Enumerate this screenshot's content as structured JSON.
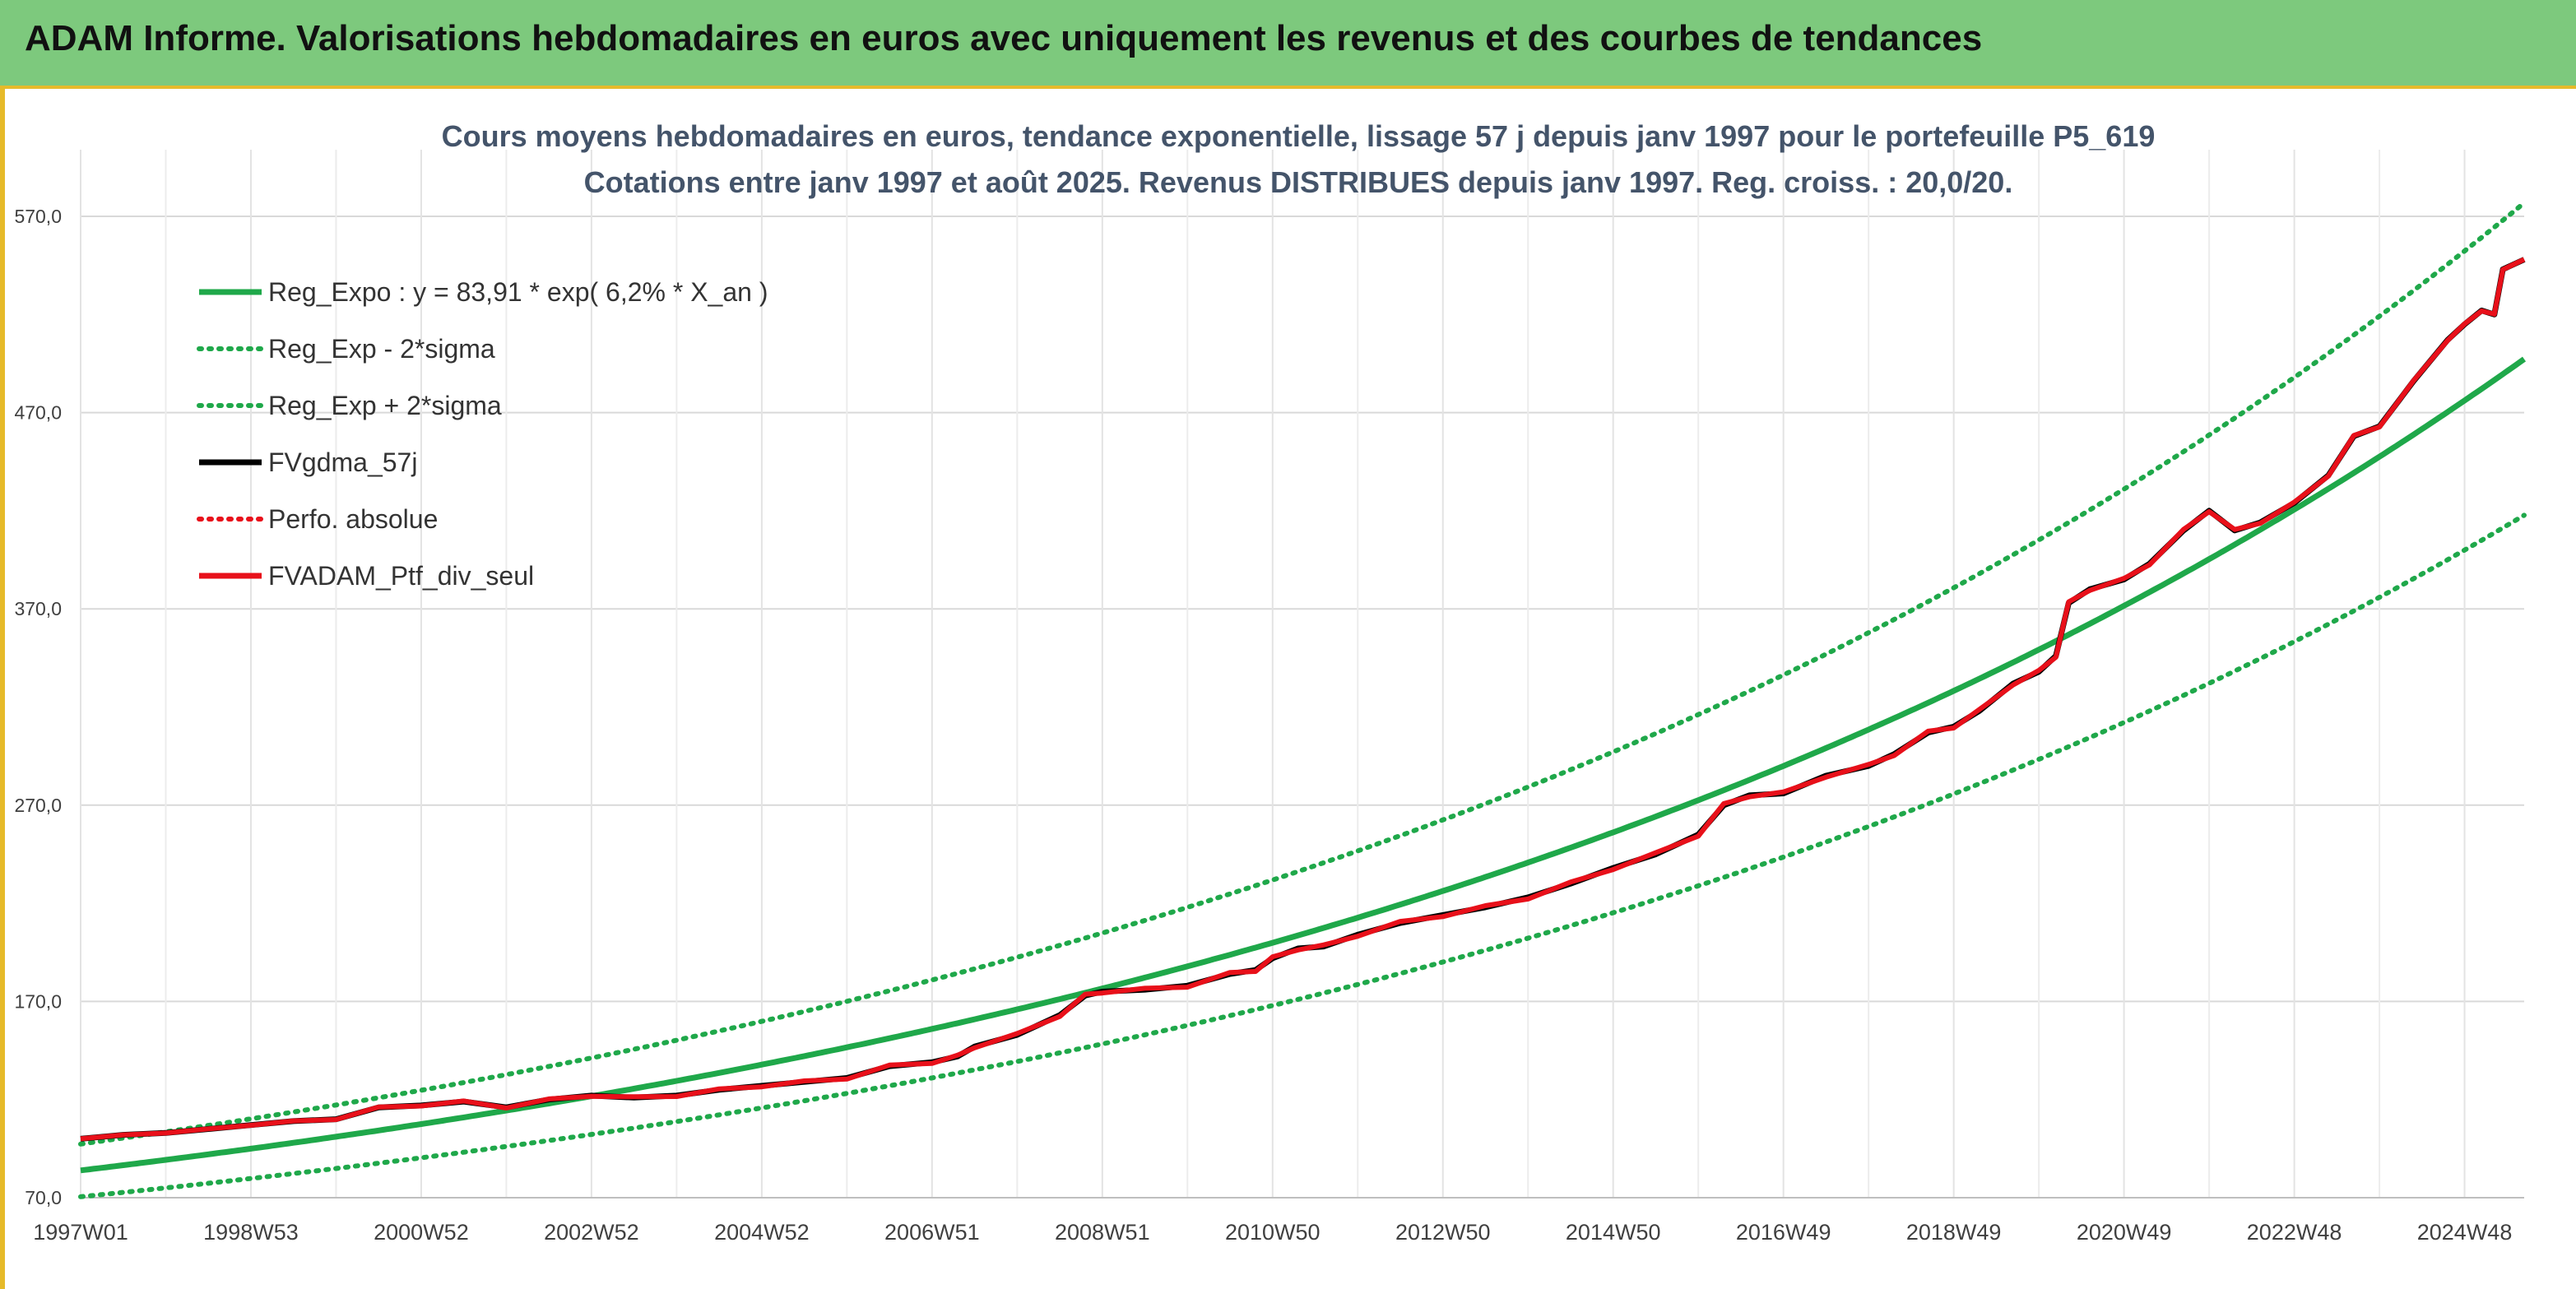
{
  "banner": {
    "title": "ADAM Informe. Valorisations hebdomadaires en euros avec uniquement les revenus et des courbes de tendances"
  },
  "colors": {
    "banner_bg": "#7dc97d",
    "frame_accent": "#e6ba2a",
    "trend": "#1fa84a",
    "smooth": "#000000",
    "portfolio": "#e8101a"
  },
  "chart_data": {
    "type": "line",
    "title": "Cours moyens hebdomadaires en euros, tendance exponentielle, lissage 57 j depuis janv 1997 pour le portefeuille P5_619",
    "subtitle": "Cotations entre janv 1997 et août 2025. Revenus DISTRIBUES depuis janv 1997. Reg. croiss. : 20,0/20.",
    "xlabel": "",
    "ylabel": "",
    "ylim": [
      70,
      600
    ],
    "yticks": [
      70,
      170,
      270,
      370,
      470,
      570
    ],
    "ytick_labels": [
      "70,0",
      "170,0",
      "270,0",
      "370,0",
      "470,0",
      "570,0"
    ],
    "xlim": [
      1997.0,
      2025.7
    ],
    "xticks": [
      1997.0,
      1999.0,
      2001.0,
      2003.0,
      2005.0,
      2007.0,
      2009.0,
      2011.0,
      2013.0,
      2015.0,
      2017.0,
      2019.0,
      2021.0,
      2023.0,
      2025.0
    ],
    "xtick_labels": [
      "1997W01",
      "1998W53",
      "2000W52",
      "2002W52",
      "2004W52",
      "2006W51",
      "2008W51",
      "2010W50",
      "2012W50",
      "2014W50",
      "2016W49",
      "2018W49",
      "2020W49",
      "2022W48",
      "2024W48"
    ],
    "grid": true,
    "legend_position": "top-left",
    "regression": {
      "a": 83.91,
      "rate": 0.062,
      "sigma_factor": 0.16
    },
    "series": [
      {
        "name": "Reg_Expo : y = 83,91 * exp( 6,2% *  X_an )",
        "color": "#1fa84a",
        "style": "solid",
        "kind": "regression"
      },
      {
        "name": "Reg_Exp - 2*sigma",
        "color": "#1fa84a",
        "style": "dotted",
        "kind": "lower_band"
      },
      {
        "name": "Reg_Exp + 2*sigma",
        "color": "#1fa84a",
        "style": "dotted",
        "kind": "upper_band"
      },
      {
        "name": "FVgdma_57j",
        "color": "#000000",
        "style": "solid",
        "kind": "smooth"
      },
      {
        "name": "Perfo. absolue",
        "color": "#e8101a",
        "style": "dotted",
        "kind": "none"
      },
      {
        "name": "FVADAM_Ptf_div_seul",
        "color": "#e8101a",
        "style": "solid",
        "kind": "portfolio"
      }
    ],
    "portfolio_points": [
      [
        1997.0,
        100
      ],
      [
        1997.5,
        102
      ],
      [
        1998.0,
        103
      ],
      [
        1998.5,
        105
      ],
      [
        1999.0,
        107
      ],
      [
        1999.5,
        109
      ],
      [
        2000.0,
        110
      ],
      [
        2000.5,
        116
      ],
      [
        2001.0,
        117
      ],
      [
        2001.5,
        119
      ],
      [
        2002.0,
        116
      ],
      [
        2002.5,
        120
      ],
      [
        2003.0,
        122
      ],
      [
        2003.5,
        121
      ],
      [
        2004.0,
        122
      ],
      [
        2004.5,
        125
      ],
      [
        2005.0,
        127
      ],
      [
        2005.5,
        129
      ],
      [
        2006.0,
        131
      ],
      [
        2006.5,
        137
      ],
      [
        2007.0,
        139
      ],
      [
        2007.3,
        142
      ],
      [
        2007.5,
        147
      ],
      [
        2008.0,
        153
      ],
      [
        2008.5,
        163
      ],
      [
        2008.8,
        173
      ],
      [
        2009.0,
        175
      ],
      [
        2009.5,
        176
      ],
      [
        2010.0,
        178
      ],
      [
        2010.5,
        184
      ],
      [
        2010.8,
        186
      ],
      [
        2011.0,
        192
      ],
      [
        2011.3,
        197
      ],
      [
        2011.6,
        198
      ],
      [
        2012.0,
        204
      ],
      [
        2012.5,
        210
      ],
      [
        2013.0,
        214
      ],
      [
        2013.5,
        218
      ],
      [
        2014.0,
        223
      ],
      [
        2014.5,
        230
      ],
      [
        2015.0,
        238
      ],
      [
        2015.5,
        245
      ],
      [
        2016.0,
        255
      ],
      [
        2016.3,
        270
      ],
      [
        2016.6,
        275
      ],
      [
        2017.0,
        276
      ],
      [
        2017.5,
        285
      ],
      [
        2018.0,
        290
      ],
      [
        2018.3,
        296
      ],
      [
        2018.7,
        307
      ],
      [
        2019.0,
        310
      ],
      [
        2019.3,
        318
      ],
      [
        2019.7,
        332
      ],
      [
        2020.0,
        338
      ],
      [
        2020.2,
        346
      ],
      [
        2020.35,
        373
      ],
      [
        2020.6,
        380
      ],
      [
        2021.0,
        385
      ],
      [
        2021.3,
        393
      ],
      [
        2021.7,
        410
      ],
      [
        2022.0,
        420
      ],
      [
        2022.3,
        410
      ],
      [
        2022.6,
        414
      ],
      [
        2023.0,
        424
      ],
      [
        2023.4,
        438
      ],
      [
        2023.7,
        458
      ],
      [
        2024.0,
        463
      ],
      [
        2024.4,
        486
      ],
      [
        2024.8,
        507
      ],
      [
        2025.0,
        515
      ],
      [
        2025.2,
        522
      ],
      [
        2025.35,
        520
      ],
      [
        2025.45,
        543
      ],
      [
        2025.7,
        548
      ]
    ]
  }
}
